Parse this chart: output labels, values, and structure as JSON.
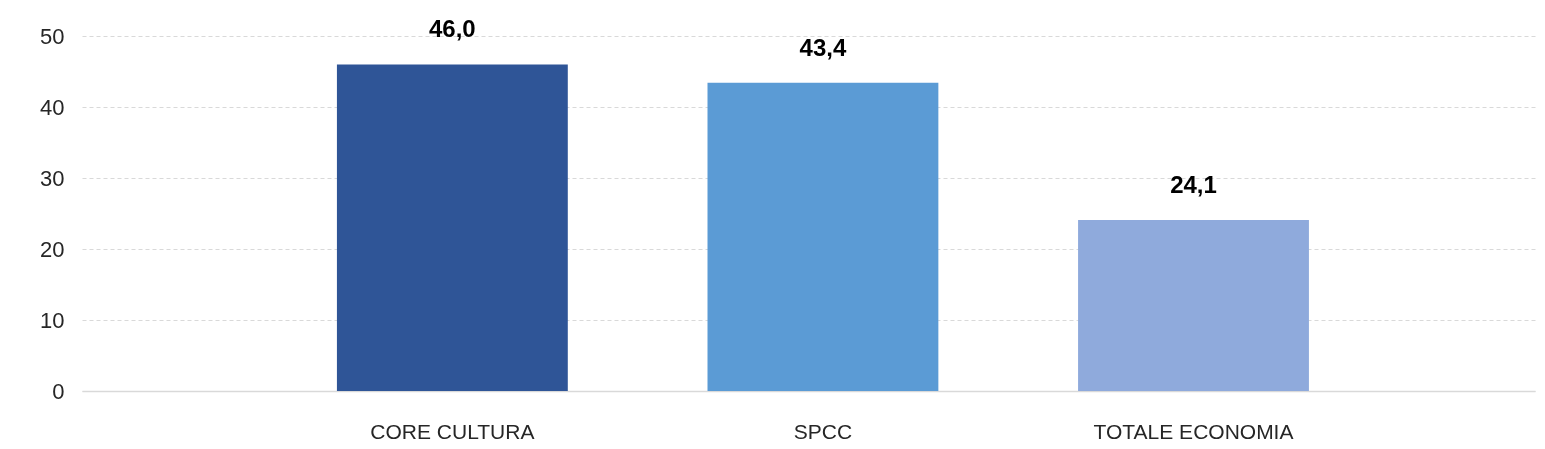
{
  "chart_data": {
    "type": "bar",
    "categories": [
      "CORE CULTURA",
      "SPCC",
      "TOTALE ECONOMIA"
    ],
    "values": [
      46.0,
      43.4,
      24.1
    ],
    "colors": [
      "#2f5597",
      "#5b9bd5",
      "#8faadc"
    ],
    "value_labels": [
      "46,0",
      "43,4",
      "24,1"
    ],
    "ylim": [
      0,
      50
    ],
    "yticks": [
      0,
      10,
      20,
      30,
      40,
      50
    ],
    "grid": "y"
  }
}
